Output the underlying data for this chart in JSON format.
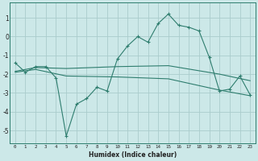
{
  "xlabel": "Humidex (Indice chaleur)",
  "bg_color": "#cce8e8",
  "grid_color": "#aacccc",
  "line_color": "#2e7d6e",
  "xlim": [
    -0.5,
    23.5
  ],
  "ylim": [
    -5.7,
    1.8
  ],
  "yticks": [
    -5,
    -4,
    -3,
    -2,
    -1,
    0,
    1
  ],
  "xticks": [
    0,
    1,
    2,
    3,
    4,
    5,
    6,
    7,
    8,
    9,
    10,
    11,
    12,
    13,
    14,
    15,
    16,
    17,
    18,
    19,
    20,
    21,
    22,
    23
  ],
  "line1": [
    [
      0,
      -1.4
    ],
    [
      1,
      -1.9
    ],
    [
      2,
      -1.6
    ],
    [
      3,
      -1.6
    ],
    [
      4,
      -2.2
    ],
    [
      5,
      -5.3
    ],
    [
      6,
      -3.6
    ],
    [
      7,
      -3.3
    ],
    [
      8,
      -2.7
    ],
    [
      9,
      -2.9
    ],
    [
      10,
      -1.2
    ],
    [
      11,
      -0.5
    ],
    [
      12,
      0.0
    ],
    [
      13,
      -0.3
    ],
    [
      14,
      0.7
    ],
    [
      15,
      1.2
    ],
    [
      16,
      0.6
    ],
    [
      17,
      0.5
    ],
    [
      18,
      0.3
    ],
    [
      19,
      -1.1
    ],
    [
      20,
      -2.9
    ],
    [
      21,
      -2.8
    ],
    [
      22,
      -2.1
    ],
    [
      23,
      -3.1
    ]
  ],
  "line2": [
    [
      0,
      -1.85
    ],
    [
      2,
      -1.65
    ],
    [
      5,
      -1.7
    ],
    [
      10,
      -1.6
    ],
    [
      15,
      -1.55
    ],
    [
      20,
      -2.0
    ],
    [
      23,
      -2.35
    ]
  ],
  "line3": [
    [
      0,
      -1.9
    ],
    [
      2,
      -1.75
    ],
    [
      5,
      -2.1
    ],
    [
      10,
      -2.15
    ],
    [
      15,
      -2.25
    ],
    [
      20,
      -2.85
    ],
    [
      23,
      -3.15
    ]
  ],
  "xlabel_fontsize": 5.5,
  "xlabel_fontweight": "bold",
  "ytick_fontsize": 5.5,
  "xtick_fontsize": 4.2
}
